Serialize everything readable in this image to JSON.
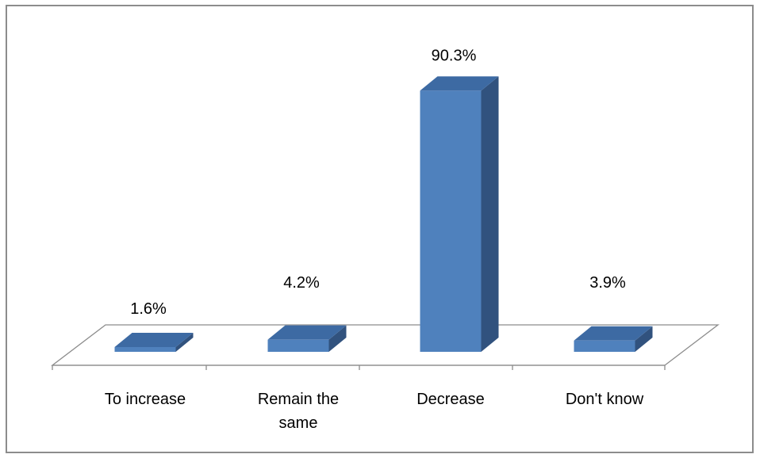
{
  "chart_data": {
    "type": "bar",
    "categories": [
      [
        "To increase"
      ],
      [
        "Remain the",
        "same"
      ],
      [
        "Decrease"
      ],
      [
        "Don't know"
      ]
    ],
    "values": [
      1.6,
      4.2,
      90.3,
      3.9
    ],
    "data_labels": [
      "1.6%",
      "4.2%",
      "90.3%",
      "3.9%"
    ],
    "ylim": [
      0,
      100
    ],
    "grid": false,
    "legend": "none",
    "style": "3d-column",
    "colors": {
      "bar_front": "#4f81bd",
      "bar_top": "#3d6aa3",
      "bar_side": "#31527e",
      "axis": "#8c8c8c"
    }
  }
}
